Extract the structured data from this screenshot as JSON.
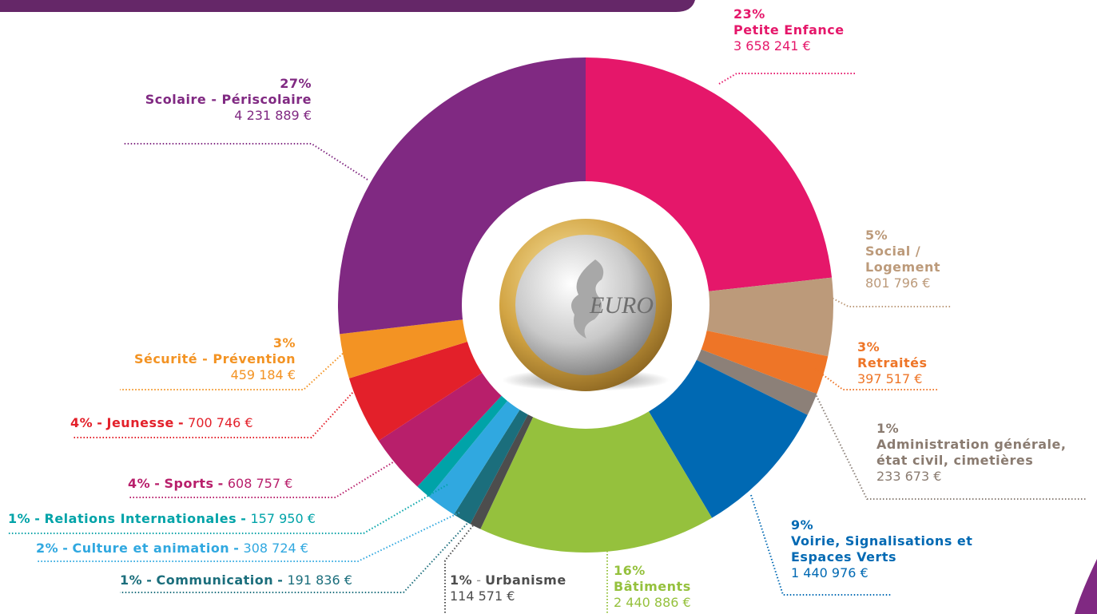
{
  "chart_data": {
    "type": "pie",
    "categories": [
      "Petite Enfance",
      "Social / Logement",
      "Retraités",
      "Administration générale, état civil, cimetières",
      "Voirie, Signalisations et Espaces Verts",
      "Bâtiments",
      "Urbanisme",
      "Communication",
      "Culture et animation",
      "Relations Internationales",
      "Sports",
      "Jeunesse",
      "Sécurité - Prévention",
      "Scolaire - Périscolaire"
    ],
    "values": [
      3658241,
      801796,
      397517,
      233673,
      1440976,
      2440886,
      114571,
      191836,
      308724,
      157950,
      608757,
      700746,
      459184,
      4231889
    ],
    "value_labels": [
      "3 658 241 €",
      "801 796 €",
      "397 517 €",
      "233 673 €",
      "1 440 976 €",
      "2 440 886 €",
      "114 571 €",
      "191 836 €",
      "308 724 €",
      "157 950 €",
      "608 757 €",
      "700 746 €",
      "459 184 €",
      "4 231 889 €"
    ],
    "shares": [
      23,
      5,
      3,
      1,
      9,
      16,
      1,
      1,
      2,
      1,
      4,
      4,
      3,
      27
    ],
    "share_labels": [
      "23%",
      "5%",
      "3%",
      "1%",
      "9%",
      "16%",
      "1%",
      "1%",
      "2%",
      "1%",
      "4%",
      "4%",
      "3%",
      "27%"
    ],
    "colors": [
      "#e5176a",
      "#bc9a7a",
      "#ee7527",
      "#8c8078",
      "#0069b3",
      "#95c13d",
      "#4d4d4d",
      "#1b6e7c",
      "#30a8e0",
      "#00a3a8",
      "#b81f6b",
      "#e3202a",
      "#f39323",
      "#802982"
    ],
    "separator": "-",
    "coin_text": "EURO"
  }
}
